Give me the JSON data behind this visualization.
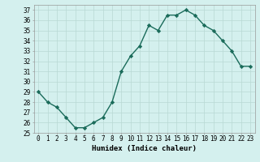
{
  "x": [
    0,
    1,
    2,
    3,
    4,
    5,
    6,
    7,
    8,
    9,
    10,
    11,
    12,
    13,
    14,
    15,
    16,
    17,
    18,
    19,
    20,
    21,
    22,
    23
  ],
  "y": [
    29,
    28,
    27.5,
    26.5,
    25.5,
    25.5,
    26,
    26.5,
    28,
    31,
    32.5,
    33.5,
    35.5,
    35,
    36.5,
    36.5,
    37,
    36.5,
    35.5,
    35,
    34,
    33,
    31.5,
    31.5
  ],
  "line_color": "#1a6b5a",
  "marker": "D",
  "marker_size": 2.2,
  "bg_color": "#d4f0ee",
  "grid_color": "#b8d8d4",
  "xlabel": "Humidex (Indice chaleur)",
  "xlim": [
    -0.5,
    23.5
  ],
  "ylim": [
    25,
    37.5
  ],
  "yticks": [
    25,
    26,
    27,
    28,
    29,
    30,
    31,
    32,
    33,
    34,
    35,
    36,
    37
  ],
  "tick_fontsize": 5.5,
  "xlabel_fontsize": 6.5,
  "linewidth": 1.0
}
